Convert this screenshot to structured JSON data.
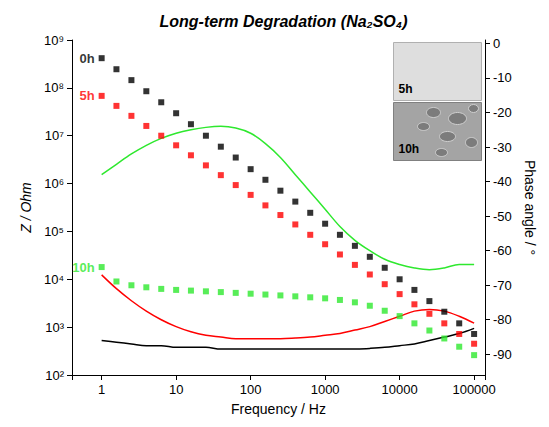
{
  "chart_data": {
    "type": "scatter",
    "title": "Long-term Degradation (Na₂SO₄)",
    "x_label": "Frequency / Hz",
    "y_label": "Z / Ohm",
    "y2_label": "Phase angle / °",
    "log": true,
    "grid": false,
    "xlim": [
      0.4,
      140000
    ],
    "xticks": [
      1,
      10,
      100,
      1000,
      10000,
      100000
    ],
    "ylim": [
      100,
      1000000000
    ],
    "yticks": [
      {
        "value": 100,
        "label": "10²"
      },
      {
        "value": 1000,
        "label": "10³"
      },
      {
        "value": 10000,
        "label": "10⁴"
      },
      {
        "value": 100000,
        "label": "10⁵"
      },
      {
        "value": 1000000,
        "label": "10⁶"
      },
      {
        "value": 10000000,
        "label": "10⁷"
      },
      {
        "value": 100000000,
        "label": "10⁸"
      },
      {
        "value": 1000000000,
        "label": "10⁹"
      }
    ],
    "y2lim": [
      -96,
      1
    ],
    "y2ticks": [
      0,
      -10,
      -20,
      -30,
      -40,
      -50,
      -60,
      -70,
      -80,
      -90
    ],
    "annotations": [
      "5h",
      "10h"
    ],
    "x": [
      1,
      1.58,
      2.51,
      3.98,
      6.31,
      10,
      15.8,
      25.1,
      39.8,
      63.1,
      100,
      158,
      251,
      398,
      631,
      1000,
      1580,
      2510,
      3980,
      6310,
      10000,
      15800,
      25100,
      39800,
      63100,
      100000
    ],
    "series": [
      {
        "name": "0h",
        "color": "#000000",
        "type": "scatter",
        "marker": "square",
        "values": [
          417000000,
          245000000,
          145000000,
          85000000,
          50000000,
          29500000,
          17400000,
          10000000,
          5900000,
          3500000,
          2000000,
          1200000,
          710000,
          420000,
          245000,
          145000,
          85000,
          50000,
          29500,
          17400,
          10000,
          6000,
          3500,
          2100,
          1200,
          720
        ]
      },
      {
        "name": "5h",
        "color": "#ff0000",
        "type": "scatter",
        "marker": "square",
        "values": [
          68000000,
          42000000,
          26000000,
          16000000,
          10000000,
          6300000,
          3900000,
          2400000,
          1500000,
          930000,
          580000,
          350000,
          220000,
          140000,
          85000,
          54000,
          33000,
          20000,
          12600,
          7900,
          4900,
          3000,
          1900,
          1200,
          720,
          450
        ]
      },
      {
        "name": "10h",
        "color": "#2ee82e",
        "type": "scatter",
        "marker": "square",
        "values": [
          18000,
          9000,
          7500,
          6800,
          6300,
          6000,
          5800,
          5600,
          5400,
          5200,
          5000,
          4800,
          4600,
          4400,
          4200,
          4000,
          3700,
          3300,
          2800,
          2200,
          1700,
          1200,
          850,
          580,
          390,
          260
        ]
      },
      {
        "name": "0h",
        "color": "#000000",
        "type": "line",
        "axis": "y2",
        "line_style": "solid",
        "values": [
          -86,
          -86.5,
          -87,
          -87.5,
          -87.5,
          -88,
          -88,
          -88,
          -88.5,
          -88.5,
          -88.5,
          -88.5,
          -88.5,
          -88.5,
          -88.5,
          -88.5,
          -88.5,
          -88.5,
          -88.3,
          -88,
          -87.5,
          -87,
          -86,
          -85,
          -84,
          -82.5
        ]
      },
      {
        "name": "5h",
        "color": "#ff0000",
        "type": "line",
        "axis": "y2",
        "line_style": "solid",
        "values": [
          -67,
          -71,
          -74.5,
          -77.5,
          -80,
          -82,
          -83.5,
          -84.5,
          -85,
          -85.5,
          -85.5,
          -85.5,
          -85.5,
          -85.3,
          -85,
          -84.5,
          -84,
          -83,
          -82,
          -80.5,
          -79,
          -77.5,
          -77,
          -77.5,
          -79,
          -81
        ]
      },
      {
        "name": "10h",
        "color": "#2ee82e",
        "type": "line",
        "axis": "y2",
        "line_style": "solid",
        "values": [
          -38,
          -35,
          -32,
          -29.5,
          -27.5,
          -26,
          -25,
          -24.3,
          -24,
          -24.5,
          -26,
          -29,
          -33,
          -38,
          -43,
          -48,
          -53,
          -57,
          -60,
          -62.5,
          -64,
          -65,
          -65.5,
          -65,
          -64,
          -64
        ]
      }
    ]
  }
}
